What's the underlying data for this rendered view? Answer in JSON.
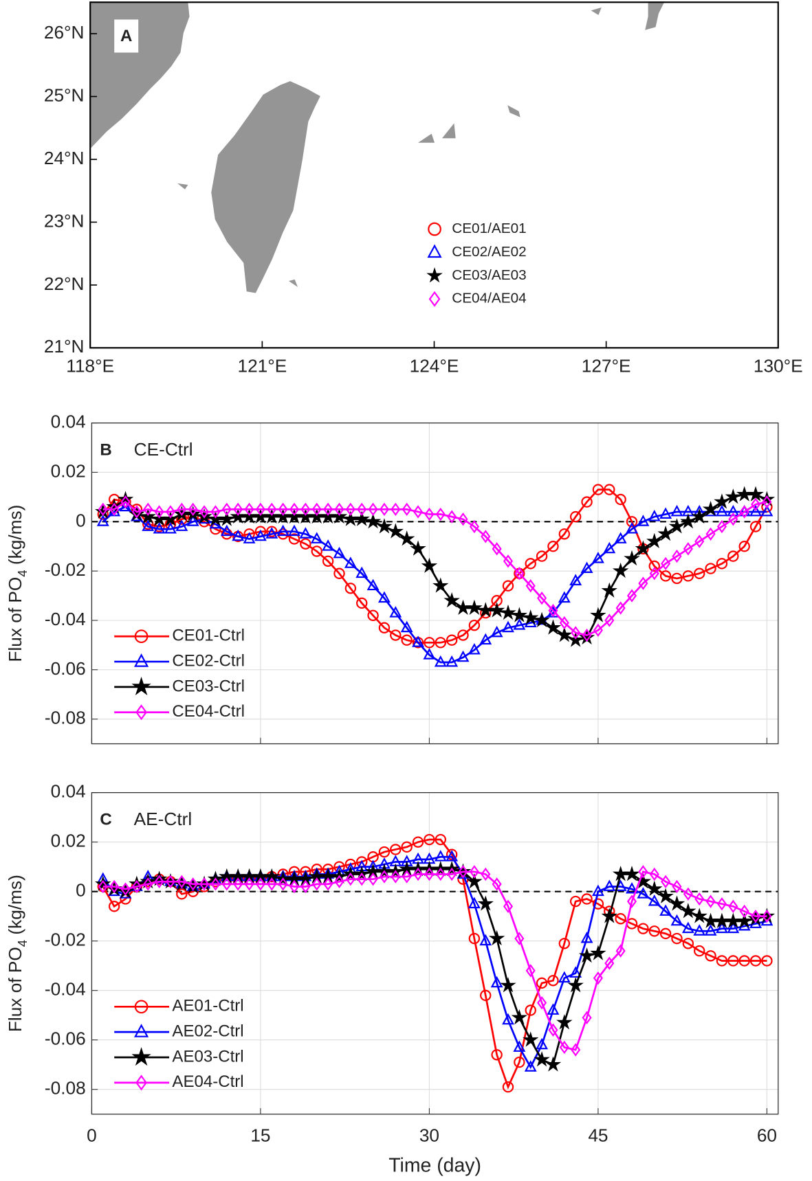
{
  "chart_data": [
    {
      "type": "map",
      "panel": "A",
      "xlim": [
        118,
        130
      ],
      "ylim": [
        21,
        26.5
      ],
      "xticks": [
        {
          "value": 118,
          "label": "118°E"
        },
        {
          "value": 121,
          "label": "121°E"
        },
        {
          "value": 124,
          "label": "124°E"
        },
        {
          "value": 127,
          "label": "127°E"
        },
        {
          "value": 130,
          "label": "130°E"
        }
      ],
      "yticks": [
        {
          "value": 21,
          "label": "21°N"
        },
        {
          "value": 22,
          "label": "22°N"
        },
        {
          "value": 23,
          "label": "23°N"
        },
        {
          "value": 24,
          "label": "24°N"
        },
        {
          "value": 25,
          "label": "25°N"
        },
        {
          "value": 26,
          "label": "26°N"
        }
      ],
      "legend": [
        {
          "name": "CE01/AE01",
          "color": "#ff0000",
          "marker": "circle"
        },
        {
          "name": "CE02/AE02",
          "color": "#0000ff",
          "marker": "triangle"
        },
        {
          "name": "CE03/AE03",
          "color": "#000000",
          "marker": "star"
        },
        {
          "name": "CE04/AE04",
          "color": "#ff00ff",
          "marker": "diamond"
        }
      ]
    },
    {
      "type": "line",
      "panel": "B",
      "title": "CE-Ctrl",
      "ylabel": [
        "Flux of PO",
        "4",
        " (kg/ms)"
      ],
      "xlim": [
        0,
        61
      ],
      "ylim": [
        -0.09,
        0.04
      ],
      "xticks": [
        0,
        15,
        30,
        45,
        60
      ],
      "xtick_labels": false,
      "yticks": [
        0.04,
        0.02,
        0,
        -0.02,
        -0.04,
        -0.06,
        -0.08
      ],
      "grid": true,
      "hline": 0,
      "legend": "lower left",
      "x": [
        1,
        2,
        3,
        4,
        5,
        6,
        7,
        8,
        9,
        10,
        11,
        12,
        13,
        14,
        15,
        16,
        17,
        18,
        19,
        20,
        21,
        22,
        23,
        24,
        25,
        26,
        27,
        28,
        29,
        30,
        31,
        32,
        33,
        34,
        35,
        36,
        37,
        38,
        39,
        40,
        41,
        42,
        43,
        44,
        45,
        46,
        47,
        48,
        49,
        50,
        51,
        52,
        53,
        54,
        55,
        56,
        57,
        58,
        59,
        60
      ],
      "series": [
        {
          "name": "CE01-Ctrl",
          "color": "#ff0000",
          "marker": "circle",
          "values": [
            0.003,
            0.009,
            0.008,
            0.005,
            -0.001,
            -0.002,
            -0.001,
            0.001,
            0.002,
            0,
            -0.003,
            -0.005,
            -0.006,
            -0.005,
            -0.004,
            -0.004,
            -0.005,
            -0.007,
            -0.009,
            -0.012,
            -0.016,
            -0.021,
            -0.027,
            -0.033,
            -0.038,
            -0.043,
            -0.046,
            -0.048,
            -0.049,
            -0.049,
            -0.049,
            -0.048,
            -0.046,
            -0.042,
            -0.037,
            -0.032,
            -0.026,
            -0.021,
            -0.017,
            -0.014,
            -0.01,
            -0.005,
            0.002,
            0.008,
            0.013,
            0.013,
            0.009,
            0,
            -0.011,
            -0.018,
            -0.022,
            -0.023,
            -0.022,
            -0.021,
            -0.019,
            -0.017,
            -0.014,
            -0.01,
            -0.002,
            0.006
          ]
        },
        {
          "name": "CE02-Ctrl",
          "color": "#0000ff",
          "marker": "triangle",
          "values": [
            0,
            0.004,
            0.006,
            0.002,
            -0.002,
            -0.003,
            -0.003,
            -0.002,
            0,
            0.001,
            -0.001,
            -0.004,
            -0.006,
            -0.007,
            -0.006,
            -0.005,
            -0.004,
            -0.004,
            -0.005,
            -0.007,
            -0.01,
            -0.013,
            -0.017,
            -0.021,
            -0.026,
            -0.031,
            -0.037,
            -0.043,
            -0.049,
            -0.054,
            -0.057,
            -0.057,
            -0.055,
            -0.052,
            -0.048,
            -0.045,
            -0.043,
            -0.042,
            -0.041,
            -0.04,
            -0.037,
            -0.031,
            -0.024,
            -0.019,
            -0.015,
            -0.011,
            -0.007,
            -0.003,
            0,
            0.002,
            0.003,
            0.004,
            0.004,
            0.004,
            0.004,
            0.004,
            0.004,
            0.004,
            0.004,
            0.004
          ]
        },
        {
          "name": "CE03-Ctrl",
          "color": "#000000",
          "marker": "star",
          "values": [
            0.004,
            0.006,
            0.009,
            0.003,
            0.002,
            0.001,
            0.001,
            0.003,
            0.003,
            0.002,
            0.001,
            0.001,
            0.002,
            0.002,
            0.002,
            0.002,
            0.002,
            0.002,
            0.002,
            0.002,
            0.002,
            0.002,
            0.001,
            0.001,
            0,
            -0.002,
            -0.004,
            -0.007,
            -0.011,
            -0.018,
            -0.026,
            -0.032,
            -0.035,
            -0.035,
            -0.036,
            -0.036,
            -0.037,
            -0.038,
            -0.039,
            -0.04,
            -0.043,
            -0.046,
            -0.048,
            -0.047,
            -0.038,
            -0.028,
            -0.02,
            -0.015,
            -0.011,
            -0.008,
            -0.005,
            -0.002,
            0,
            0.002,
            0.005,
            0.008,
            0.01,
            0.011,
            0.011,
            0.009
          ]
        },
        {
          "name": "CE04-Ctrl",
          "color": "#ff00ff",
          "marker": "diamond",
          "values": [
            0.005,
            0.005,
            0.008,
            0.004,
            0.005,
            0.004,
            0.004,
            0.005,
            0.005,
            0.004,
            0.004,
            0.005,
            0.005,
            0.005,
            0.005,
            0.005,
            0.005,
            0.005,
            0.005,
            0.005,
            0.005,
            0.005,
            0.005,
            0.005,
            0.005,
            0.005,
            0.005,
            0.005,
            0.004,
            0.003,
            0.003,
            0.002,
            0.001,
            -0.002,
            -0.006,
            -0.011,
            -0.016,
            -0.021,
            -0.026,
            -0.031,
            -0.036,
            -0.041,
            -0.045,
            -0.046,
            -0.044,
            -0.04,
            -0.035,
            -0.03,
            -0.025,
            -0.021,
            -0.017,
            -0.014,
            -0.011,
            -0.008,
            -0.005,
            -0.002,
            0.001,
            0.004,
            0.007,
            0.008
          ]
        }
      ]
    },
    {
      "type": "line",
      "panel": "C",
      "title": "AE-Ctrl",
      "ylabel": [
        "Flux of PO",
        "4",
        " (kg/ms)"
      ],
      "xlabel": "Time (day)",
      "xlim": [
        0,
        61
      ],
      "ylim": [
        -0.09,
        0.04
      ],
      "xticks": [
        0,
        15,
        30,
        45,
        60
      ],
      "xtick_labels": true,
      "yticks": [
        0.04,
        0.02,
        0,
        -0.02,
        -0.04,
        -0.06,
        -0.08
      ],
      "grid": true,
      "hline": 0,
      "legend": "lower left",
      "x": [
        1,
        2,
        3,
        4,
        5,
        6,
        7,
        8,
        9,
        10,
        11,
        12,
        13,
        14,
        15,
        16,
        17,
        18,
        19,
        20,
        21,
        22,
        23,
        24,
        25,
        26,
        27,
        28,
        29,
        30,
        31,
        32,
        33,
        34,
        35,
        36,
        37,
        38,
        39,
        40,
        41,
        42,
        43,
        44,
        45,
        46,
        47,
        48,
        49,
        50,
        51,
        52,
        53,
        54,
        55,
        56,
        57,
        58,
        59,
        60
      ],
      "series": [
        {
          "name": "AE01-Ctrl",
          "color": "#ff0000",
          "marker": "circle",
          "values": [
            0.002,
            -0.006,
            -0.003,
            0.002,
            0.004,
            0.005,
            0.004,
            -0.001,
            0,
            0.002,
            0.004,
            0.005,
            0.005,
            0.005,
            0.005,
            0.006,
            0.007,
            0.008,
            0.008,
            0.009,
            0.009,
            0.01,
            0.011,
            0.012,
            0.014,
            0.016,
            0.017,
            0.018,
            0.02,
            0.021,
            0.021,
            0.015,
            0.005,
            -0.019,
            -0.042,
            -0.066,
            -0.079,
            -0.069,
            -0.048,
            -0.037,
            -0.036,
            -0.021,
            -0.004,
            -0.003,
            -0.005,
            -0.008,
            -0.011,
            -0.013,
            -0.015,
            -0.016,
            -0.017,
            -0.019,
            -0.021,
            -0.024,
            -0.026,
            -0.028,
            -0.028,
            -0.028,
            -0.028,
            -0.028
          ]
        },
        {
          "name": "AE02-Ctrl",
          "color": "#0000ff",
          "marker": "triangle",
          "values": [
            0.005,
            0,
            -0.001,
            0.002,
            0.006,
            0.005,
            0.004,
            0.003,
            0.002,
            0.003,
            0.005,
            0.006,
            0.006,
            0.006,
            0.006,
            0.006,
            0.006,
            0.006,
            0.006,
            0.007,
            0.007,
            0.008,
            0.009,
            0.01,
            0.01,
            0.011,
            0.012,
            0.012,
            0.013,
            0.013,
            0.014,
            0.014,
            0.007,
            -0.005,
            -0.02,
            -0.037,
            -0.052,
            -0.063,
            -0.071,
            -0.062,
            -0.048,
            -0.035,
            -0.033,
            -0.019,
            0,
            0.002,
            0.002,
            0.001,
            -0.001,
            -0.004,
            -0.008,
            -0.012,
            -0.015,
            -0.016,
            -0.016,
            -0.015,
            -0.015,
            -0.014,
            -0.013,
            -0.012
          ]
        },
        {
          "name": "AE03-Ctrl",
          "color": "#000000",
          "marker": "star",
          "values": [
            0.003,
            0.001,
            0,
            0.003,
            0.004,
            0.005,
            0.004,
            0.003,
            0.002,
            0.003,
            0.005,
            0.006,
            0.006,
            0.006,
            0.006,
            0.006,
            0.005,
            0.005,
            0.005,
            0.006,
            0.006,
            0.006,
            0.007,
            0.007,
            0.008,
            0.008,
            0.008,
            0.009,
            0.009,
            0.009,
            0.009,
            0.009,
            0.008,
            0.004,
            -0.005,
            -0.019,
            -0.038,
            -0.051,
            -0.06,
            -0.068,
            -0.07,
            -0.053,
            -0.038,
            -0.026,
            -0.025,
            -0.01,
            0.007,
            0.007,
            0.004,
            0.001,
            -0.002,
            -0.005,
            -0.008,
            -0.01,
            -0.012,
            -0.012,
            -0.012,
            -0.012,
            -0.011,
            -0.01
          ]
        },
        {
          "name": "AE04-Ctrl",
          "color": "#ff00ff",
          "marker": "diamond",
          "values": [
            0.002,
            0.002,
            0.001,
            0.002,
            0.003,
            0.004,
            0.004,
            0.004,
            0.003,
            0.003,
            0.003,
            0.003,
            0.003,
            0.003,
            0.003,
            0.003,
            0.003,
            0.002,
            0.002,
            0.003,
            0.003,
            0.004,
            0.005,
            0.005,
            0.005,
            0.006,
            0.006,
            0.006,
            0.007,
            0.007,
            0.007,
            0.007,
            0.008,
            0.008,
            0.007,
            0.003,
            -0.006,
            -0.019,
            -0.032,
            -0.045,
            -0.056,
            -0.063,
            -0.064,
            -0.051,
            -0.035,
            -0.029,
            -0.024,
            -0.004,
            0.008,
            0.007,
            0.004,
            0.002,
            -0.001,
            -0.003,
            -0.004,
            -0.005,
            -0.006,
            -0.008,
            -0.01,
            -0.01
          ]
        }
      ]
    }
  ]
}
